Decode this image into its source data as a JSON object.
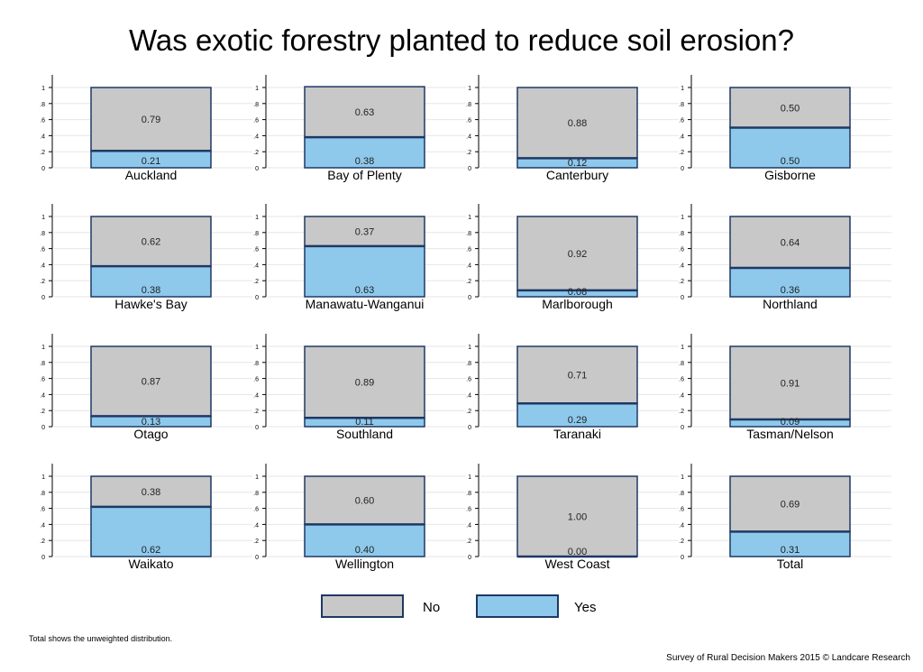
{
  "title": "Was exotic forestry planted to reduce soil erosion?",
  "footnote": "Total shows the unweighted distribution.",
  "credit": "Survey of Rural Decision Makers 2015 © Landcare Research",
  "colors": {
    "no": "#c8c8c8",
    "yes": "#8ec9ec",
    "border": "#1f3864",
    "grid": "#e6e6e6"
  },
  "legend": [
    {
      "label": "No",
      "color": "#c8c8c8"
    },
    {
      "label": "Yes",
      "color": "#8ec9ec"
    }
  ],
  "chart_data": {
    "type": "bar",
    "stacked": true,
    "facets": 16,
    "series": [
      {
        "name": "No"
      },
      {
        "name": "Yes"
      }
    ],
    "ylim": [
      0,
      1
    ],
    "yticks": [
      "0",
      ".2",
      ".4",
      ".6",
      ".8",
      "1"
    ],
    "panels": [
      {
        "label": "Auckland",
        "yes": 0.21,
        "no": 0.79,
        "yes_label": "0.21",
        "no_label": "0.79"
      },
      {
        "label": "Bay of Plenty",
        "yes": 0.38,
        "no": 0.63,
        "yes_label": "0.38",
        "no_label": "0.63"
      },
      {
        "label": "Canterbury",
        "yes": 0.12,
        "no": 0.88,
        "yes_label": "0.12",
        "no_label": "0.88"
      },
      {
        "label": "Gisborne",
        "yes": 0.5,
        "no": 0.5,
        "yes_label": "0.50",
        "no_label": "0.50"
      },
      {
        "label": "Hawke's Bay",
        "yes": 0.38,
        "no": 0.62,
        "yes_label": "0.38",
        "no_label": "0.62"
      },
      {
        "label": "Manawatu-Wanganui",
        "yes": 0.63,
        "no": 0.37,
        "yes_label": "0.63",
        "no_label": "0.37"
      },
      {
        "label": "Marlborough",
        "yes": 0.08,
        "no": 0.92,
        "yes_label": "0.08",
        "no_label": "0.92"
      },
      {
        "label": "Northland",
        "yes": 0.36,
        "no": 0.64,
        "yes_label": "0.36",
        "no_label": "0.64"
      },
      {
        "label": "Otago",
        "yes": 0.13,
        "no": 0.87,
        "yes_label": "0.13",
        "no_label": "0.87"
      },
      {
        "label": "Southland",
        "yes": 0.11,
        "no": 0.89,
        "yes_label": "0.11",
        "no_label": "0.89"
      },
      {
        "label": "Taranaki",
        "yes": 0.29,
        "no": 0.71,
        "yes_label": "0.29",
        "no_label": "0.71"
      },
      {
        "label": "Tasman/Nelson",
        "yes": 0.09,
        "no": 0.91,
        "yes_label": "0.09",
        "no_label": "0.91"
      },
      {
        "label": "Waikato",
        "yes": 0.62,
        "no": 0.38,
        "yes_label": "0.62",
        "no_label": "0.38"
      },
      {
        "label": "Wellington",
        "yes": 0.4,
        "no": 0.6,
        "yes_label": "0.40",
        "no_label": "0.60"
      },
      {
        "label": "West Coast",
        "yes": 0.0,
        "no": 1.0,
        "yes_label": "0.00",
        "no_label": "1.00"
      },
      {
        "label": "Total",
        "yes": 0.31,
        "no": 0.69,
        "yes_label": "0.31",
        "no_label": "0.69"
      }
    ]
  }
}
